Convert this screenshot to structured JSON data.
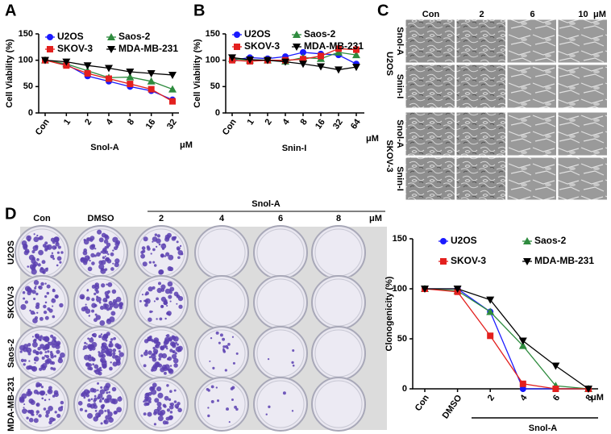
{
  "panel_labels": [
    "A",
    "B",
    "C",
    "D"
  ],
  "micrographs": {
    "columns": [
      "Con",
      "2",
      "6",
      "10"
    ],
    "unit": "μM",
    "cell_lines": [
      "U2OS",
      "SKOV-3"
    ],
    "treatments": [
      "Snol-A",
      "Snin-I"
    ]
  },
  "plates": {
    "columns": [
      "Con",
      "DMSO",
      "2",
      "4",
      "6",
      "8"
    ],
    "group_label": "Snol-A",
    "unit": "μM",
    "rows": [
      "U2OS",
      "SKOV-3",
      "Saos-2",
      "MDA-MB-231"
    ]
  },
  "chart_data": [
    {
      "type": "line",
      "ylabel": "Cell Viability (%)",
      "xlabel": "Snol-A",
      "unit": "μM",
      "categories": [
        "Con",
        "1",
        "2",
        "4",
        "8",
        "16",
        "32"
      ],
      "ylim": [
        0,
        150
      ],
      "yticks": [
        0,
        50,
        100,
        150
      ],
      "series": [
        {
          "name": "U2OS",
          "color": "#1a1aff",
          "marker": "circle",
          "values": [
            100,
            92,
            70,
            60,
            50,
            42,
            25
          ]
        },
        {
          "name": "Saos-2",
          "color": "#2e8b3e",
          "marker": "triangle",
          "values": [
            100,
            93,
            80,
            67,
            68,
            60,
            45
          ]
        },
        {
          "name": "SKOV-3",
          "color": "#e3201e",
          "marker": "square",
          "values": [
            100,
            90,
            75,
            65,
            55,
            45,
            22
          ]
        },
        {
          "name": "MDA-MB-231",
          "color": "#000000",
          "marker": "down-triangle",
          "values": [
            100,
            97,
            90,
            85,
            78,
            75,
            72
          ]
        }
      ]
    },
    {
      "type": "line",
      "ylabel": "Cell Viability (%)",
      "xlabel": "Snin-I",
      "unit": "μM",
      "categories": [
        "Con",
        "1",
        "2",
        "4",
        "8",
        "16",
        "32",
        "64"
      ],
      "ylim": [
        0,
        150
      ],
      "yticks": [
        0,
        50,
        100,
        150
      ],
      "series": [
        {
          "name": "U2OS",
          "color": "#1a1aff",
          "marker": "circle",
          "values": [
            100,
            105,
            103,
            107,
            115,
            112,
            110,
            93
          ]
        },
        {
          "name": "Saos-2",
          "color": "#2e8b3e",
          "marker": "triangle",
          "values": [
            103,
            100,
            100,
            98,
            105,
            103,
            115,
            110
          ]
        },
        {
          "name": "SKOV-3",
          "color": "#e3201e",
          "marker": "square",
          "values": [
            100,
            98,
            100,
            100,
            102,
            108,
            122,
            120
          ]
        },
        {
          "name": "MDA-MB-231",
          "color": "#000000",
          "marker": "down-triangle",
          "values": [
            105,
            101,
            100,
            97,
            93,
            88,
            82,
            87
          ]
        }
      ]
    },
    {
      "type": "line",
      "ylabel": "Clonogenicity (%)",
      "group_label": "Snol-A",
      "unit": "μM",
      "categories": [
        "Con",
        "DMSO",
        "2",
        "4",
        "6",
        "8"
      ],
      "ylim": [
        0,
        150
      ],
      "yticks": [
        0,
        50,
        100,
        150
      ],
      "series": [
        {
          "name": "U2OS",
          "color": "#1a1aff",
          "marker": "circle",
          "values": [
            100,
            100,
            77,
            0,
            0,
            0
          ]
        },
        {
          "name": "Saos-2",
          "color": "#2e8b3e",
          "marker": "triangle",
          "values": [
            100,
            98,
            77,
            43,
            3,
            0
          ]
        },
        {
          "name": "SKOV-3",
          "color": "#e3201e",
          "marker": "square",
          "values": [
            100,
            97,
            53,
            5,
            0,
            0
          ]
        },
        {
          "name": "MDA-MB-231",
          "color": "#000000",
          "marker": "down-triangle",
          "values": [
            100,
            100,
            89,
            48,
            23,
            0
          ]
        }
      ]
    }
  ]
}
